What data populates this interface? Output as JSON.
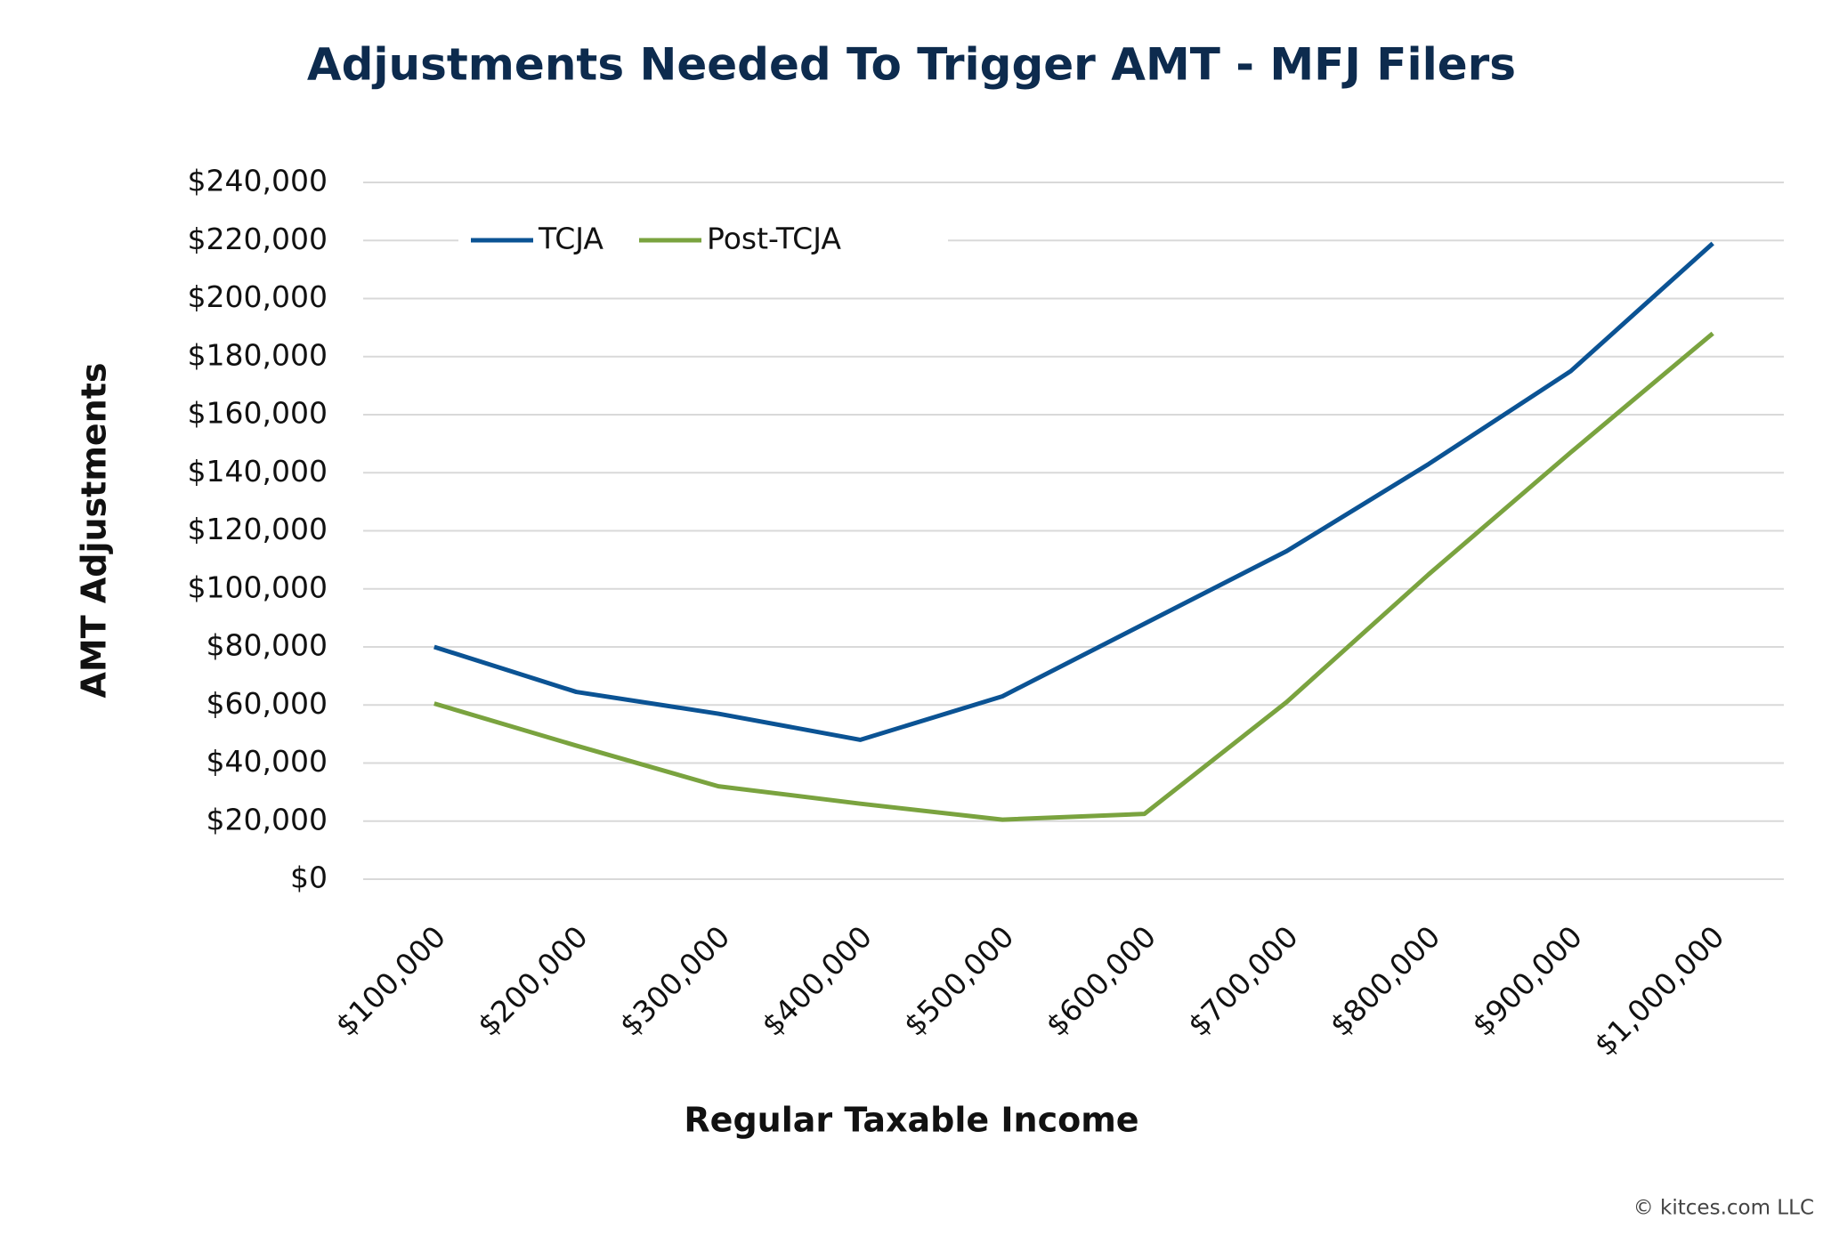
{
  "chart_data": {
    "type": "line",
    "title": "Adjustments Needed To Trigger AMT - MFJ Filers",
    "x_label": "Regular Taxable Income",
    "y_label": "AMT Adjustments",
    "footer": "© kitces.com LLC",
    "categories": [
      "$100,000",
      "$200,000",
      "$300,000",
      "$400,000",
      "$500,000",
      "$600,000",
      "$700,000",
      "$800,000",
      "$900,000",
      "$1,000,000"
    ],
    "series": [
      {
        "name": "TCJA",
        "color": "#0b5394",
        "values": [
          80000,
          64500,
          57000,
          48000,
          63000,
          88000,
          113000,
          143000,
          175000,
          219000
        ]
      },
      {
        "name": "Post-TCJA",
        "color": "#7aa33f",
        "values": [
          60500,
          46000,
          32000,
          26000,
          20500,
          22500,
          61000,
          105000,
          147000,
          188000
        ]
      }
    ],
    "ylim": [
      0,
      240000
    ],
    "yticks": [
      {
        "value": 0,
        "label": "$0"
      },
      {
        "value": 20000,
        "label": "$20,000"
      },
      {
        "value": 40000,
        "label": "$40,000"
      },
      {
        "value": 60000,
        "label": "$60,000"
      },
      {
        "value": 80000,
        "label": "$80,000"
      },
      {
        "value": 100000,
        "label": "$100,000"
      },
      {
        "value": 120000,
        "label": "$120,000"
      },
      {
        "value": 140000,
        "label": "$140,000"
      },
      {
        "value": 160000,
        "label": "$160,000"
      },
      {
        "value": 180000,
        "label": "$180,000"
      },
      {
        "value": 200000,
        "label": "$200,000"
      },
      {
        "value": 220000,
        "label": "$220,000"
      },
      {
        "value": 240000,
        "label": "$240,000"
      }
    ],
    "grid": true,
    "legend": "top-left"
  }
}
